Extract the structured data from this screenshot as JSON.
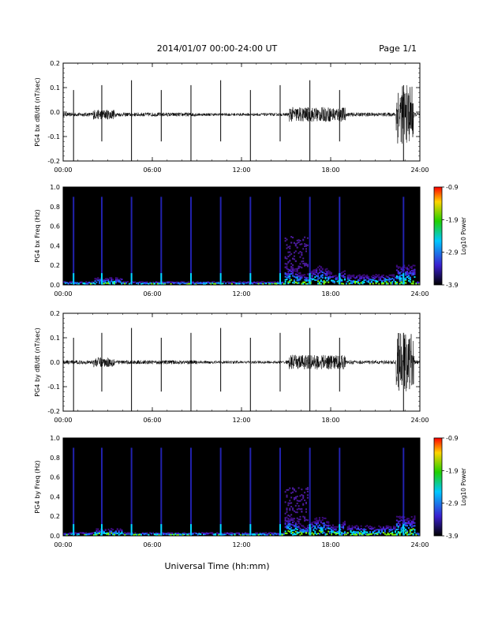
{
  "header": {
    "title": "2014/01/07  00:00-24:00 UT",
    "page": "Page 1/1"
  },
  "footer": {
    "xlabel": "Universal Time (hh:mm)"
  },
  "colors": {
    "spectrogram_background": "#000000",
    "colorbar_low": "#000000",
    "colorbar_mid1": "#3a1fd0",
    "colorbar_mid2": "#00c8ff",
    "colorbar_mid3": "#1fd000",
    "colorbar_mid4": "#ffd400",
    "colorbar_high": "#ff0000"
  },
  "chart_data": [
    {
      "type": "line",
      "panel": "bx-waveform",
      "ylabel": "PG4 bx dB/dt (nT/sec)",
      "ylim": [
        -0.2,
        0.2
      ],
      "yticks": [
        "0.2",
        "0.1",
        "0.0",
        "-0.1",
        "-0.2"
      ],
      "xticks": [
        "00:00",
        "06:00",
        "12:00",
        "18:00",
        "24:00"
      ],
      "xlim": [
        "00:00",
        "24:00"
      ],
      "baseline": -0.01,
      "spikes_hours": [
        0.7,
        2.6,
        4.6,
        6.6,
        8.6,
        10.6,
        12.6,
        14.6,
        16.6,
        18.6,
        22.9
      ],
      "high_activity_hours": [
        [
          15.2,
          19.0
        ],
        [
          22.4,
          23.6
        ]
      ]
    },
    {
      "type": "heatmap",
      "panel": "bx-spectrogram",
      "ylabel": "PG4 bx Freq (Hz)",
      "ylim": [
        0.0,
        1.0
      ],
      "yticks": [
        "1.0",
        "0.8",
        "0.6",
        "0.4",
        "0.2",
        "0.0"
      ],
      "xticks": [
        "00:00",
        "06:00",
        "12:00",
        "18:00",
        "24:00"
      ],
      "colorbar_label": "Log10 Power",
      "colorbar_ticks": [
        "-0.9",
        "-1.9",
        "-2.9",
        "-3.9"
      ],
      "clim": [
        -3.9,
        -0.9
      ]
    },
    {
      "type": "line",
      "panel": "by-waveform",
      "ylabel": "PG4 by dB/dt (nT/sec)",
      "ylim": [
        -0.2,
        0.2
      ],
      "yticks": [
        "0.2",
        "0.1",
        "0.0",
        "-0.1",
        "-0.2"
      ],
      "xticks": [
        "00:00",
        "06:00",
        "12:00",
        "18:00",
        "24:00"
      ],
      "xlim": [
        "00:00",
        "24:00"
      ],
      "baseline": 0.0,
      "spikes_hours": [
        0.7,
        2.6,
        4.6,
        6.6,
        8.6,
        10.6,
        12.6,
        14.6,
        16.6,
        18.6,
        22.9
      ],
      "high_activity_hours": [
        [
          15.2,
          19.0
        ],
        [
          22.4,
          23.6
        ]
      ]
    },
    {
      "type": "heatmap",
      "panel": "by-spectrogram",
      "ylabel": "PG4 by Freq (Hz)",
      "ylim": [
        0.0,
        1.0
      ],
      "yticks": [
        "1.0",
        "0.8",
        "0.6",
        "0.4",
        "0.2",
        "0.0"
      ],
      "xticks": [
        "00:00",
        "06:00",
        "12:00",
        "18:00",
        "24:00"
      ],
      "colorbar_label": "Log10 Power",
      "colorbar_ticks": [
        "-0.9",
        "-1.9",
        "-2.9",
        "-3.9"
      ],
      "clim": [
        -3.9,
        -0.9
      ]
    }
  ]
}
